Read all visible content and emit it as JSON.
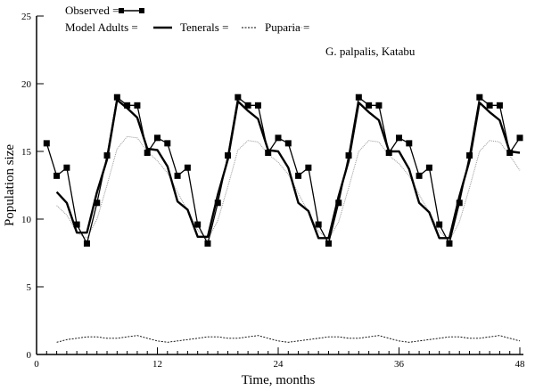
{
  "chart_data": {
    "type": "line",
    "xlabel": "Time, months",
    "ylabel": "Population size",
    "annotation": "G. palpalis, Katabu",
    "xlim": [
      0,
      48
    ],
    "ylim": [
      0,
      25
    ],
    "xticks": [
      0,
      12,
      24,
      36,
      48
    ],
    "yticks": [
      0,
      5,
      10,
      15,
      20,
      25
    ],
    "grid": false,
    "legend_placement": "top-left",
    "legend": {
      "observed": "Observed =",
      "adults": "Model Adults =",
      "tenerals": "Tenerals =",
      "puparia": "Puparia ="
    },
    "series": [
      {
        "name": "Observed",
        "style": "line-square-markers",
        "color": "#000000",
        "x": [
          1,
          2,
          3,
          4,
          5,
          6,
          7,
          8,
          9,
          10,
          11,
          12,
          13,
          14,
          15,
          16,
          17,
          18,
          19,
          20,
          21,
          22,
          23,
          24,
          25,
          26,
          27,
          28,
          29,
          30,
          31,
          32,
          33,
          34,
          35,
          36,
          37,
          38,
          39,
          40,
          41,
          42,
          43,
          44,
          45,
          46,
          47,
          48
        ],
        "y": [
          15.6,
          13.2,
          13.8,
          9.6,
          8.2,
          11.2,
          14.7,
          19.0,
          18.4,
          18.4,
          14.9,
          16.0,
          15.6,
          13.2,
          13.8,
          9.6,
          8.2,
          11.2,
          14.7,
          19.0,
          18.4,
          18.4,
          14.9,
          16.0,
          15.6,
          13.2,
          13.8,
          9.6,
          8.2,
          11.2,
          14.7,
          19.0,
          18.4,
          18.4,
          14.9,
          16.0,
          15.6,
          13.2,
          13.8,
          9.6,
          8.2,
          11.2,
          14.7,
          19.0,
          18.4,
          18.4,
          14.9,
          16.0
        ]
      },
      {
        "name": "Model Adults",
        "style": "thick-solid",
        "color": "#000000",
        "x": [
          2,
          3,
          4,
          5,
          6,
          7,
          8,
          9,
          10,
          11,
          12,
          13,
          14,
          15,
          16,
          17,
          18,
          19,
          20,
          21,
          22,
          23,
          24,
          25,
          26,
          27,
          28,
          29,
          30,
          31,
          32,
          33,
          34,
          35,
          36,
          37,
          38,
          39,
          40,
          41,
          42,
          43,
          44,
          45,
          46,
          47,
          48
        ],
        "y": [
          12.0,
          11.2,
          9.0,
          9.0,
          12.0,
          14.4,
          18.8,
          18.2,
          17.5,
          15.2,
          15.1,
          13.9,
          11.3,
          10.7,
          8.7,
          8.7,
          11.8,
          14.4,
          18.7,
          18.0,
          17.4,
          15.1,
          15.0,
          13.8,
          11.2,
          10.6,
          8.6,
          8.6,
          11.7,
          14.3,
          18.6,
          17.9,
          17.3,
          15.0,
          15.0,
          13.7,
          11.2,
          10.5,
          8.6,
          8.6,
          11.7,
          14.3,
          18.6,
          17.9,
          17.3,
          15.0,
          14.9
        ]
      },
      {
        "name": "Tenerals",
        "style": "dashed",
        "color": "#000000",
        "x": [
          2,
          3,
          4,
          5,
          6,
          7,
          8,
          9,
          10,
          11,
          12,
          13,
          14,
          15,
          16,
          17,
          18,
          19,
          20,
          21,
          22,
          23,
          24,
          25,
          26,
          27,
          28,
          29,
          30,
          31,
          32,
          33,
          34,
          35,
          36,
          37,
          38,
          39,
          40,
          41,
          42,
          43,
          44,
          45,
          46,
          47,
          48
        ],
        "y": [
          0.9,
          1.1,
          1.2,
          1.3,
          1.3,
          1.2,
          1.2,
          1.3,
          1.4,
          1.2,
          1.0,
          0.9,
          1.0,
          1.1,
          1.2,
          1.3,
          1.3,
          1.2,
          1.2,
          1.3,
          1.4,
          1.2,
          1.0,
          0.9,
          1.0,
          1.1,
          1.2,
          1.3,
          1.3,
          1.2,
          1.2,
          1.3,
          1.4,
          1.2,
          1.0,
          0.9,
          1.0,
          1.1,
          1.2,
          1.3,
          1.3,
          1.2,
          1.2,
          1.3,
          1.4,
          1.2,
          1.0
        ]
      },
      {
        "name": "Puparia",
        "style": "dotted-grey",
        "color": "#888888",
        "x": [
          2,
          3,
          4,
          5,
          6,
          7,
          8,
          9,
          10,
          11,
          12,
          13,
          14,
          15,
          16,
          17,
          18,
          19,
          20,
          21,
          22,
          23,
          24,
          25,
          26,
          27,
          28,
          29,
          30,
          31,
          32,
          33,
          34,
          35,
          36,
          37,
          38,
          39,
          40,
          41,
          42,
          43,
          44,
          45,
          46,
          47,
          48
        ],
        "y": [
          11.0,
          10.3,
          9.0,
          8.6,
          10.0,
          12.5,
          15.2,
          16.1,
          16.0,
          15.0,
          14.3,
          13.4,
          12.0,
          10.6,
          9.2,
          8.5,
          9.9,
          12.4,
          15.1,
          15.8,
          15.7,
          14.8,
          14.2,
          13.3,
          11.9,
          10.5,
          9.1,
          8.5,
          9.8,
          12.3,
          15.0,
          15.8,
          15.7,
          14.7,
          14.1,
          13.2,
          11.8,
          10.5,
          9.1,
          8.4,
          9.8,
          12.3,
          15.0,
          15.8,
          15.7,
          14.7,
          13.6
        ]
      }
    ]
  }
}
